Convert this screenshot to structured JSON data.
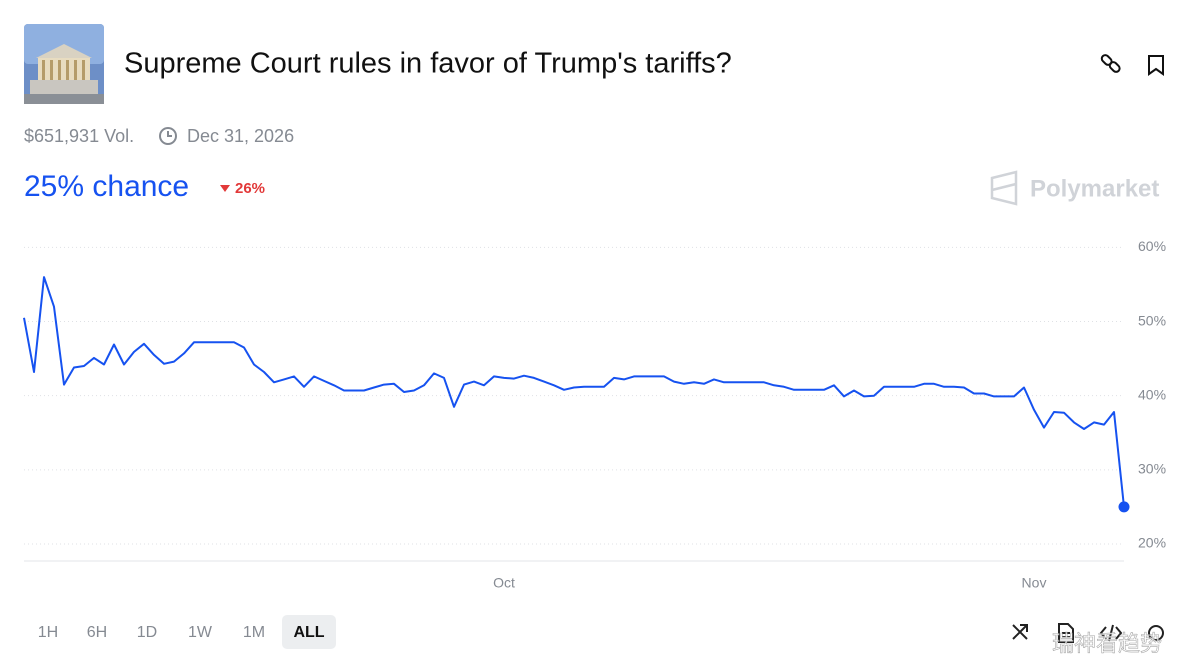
{
  "header": {
    "title": "Supreme Court rules in favor of Trump's tariffs?",
    "volume": "$651,931 Vol.",
    "end_date": "Dec 31, 2026",
    "chance": "25% chance",
    "change": "26%",
    "brand": "Polymarket"
  },
  "chart_data": {
    "type": "line",
    "categories": [
      null,
      null,
      null,
      null,
      null,
      null,
      null,
      null,
      null,
      null,
      null,
      null,
      null,
      null,
      null,
      null,
      null,
      null,
      null,
      null,
      null,
      null,
      null,
      null,
      null,
      null,
      null,
      null,
      null,
      null,
      null,
      null,
      null,
      null,
      null,
      null,
      null,
      null,
      null,
      null,
      null,
      null,
      null,
      null,
      null,
      null,
      null,
      null,
      "Oct",
      null,
      null,
      null,
      null,
      null,
      null,
      null,
      null,
      null,
      null,
      null,
      null,
      null,
      null,
      null,
      null,
      null,
      null,
      null,
      null,
      null,
      null,
      null,
      null,
      null,
      null,
      null,
      null,
      null,
      null,
      null,
      null,
      null,
      null,
      null,
      null,
      null,
      null,
      null,
      null,
      null,
      null,
      null,
      null,
      null,
      null,
      null,
      null,
      null,
      null,
      null,
      null,
      "Nov",
      null,
      null,
      null,
      null,
      null,
      null,
      null,
      null,
      null
    ],
    "series": [
      {
        "color": "#1652f0",
        "values": [
          50.5,
          43.2,
          56,
          52,
          41.5,
          43.8,
          44,
          45.1,
          44.2,
          46.9,
          44.2,
          45.9,
          47,
          45.5,
          44.3,
          44.6,
          45.7,
          47.2,
          47.2,
          47.2,
          47.2,
          47.2,
          46.5,
          44.2,
          43.2,
          41.8,
          42.2,
          42.6,
          41.2,
          42.6,
          42.0,
          41.4,
          40.7,
          40.7,
          40.7,
          41.1,
          41.5,
          41.6,
          40.5,
          40.7,
          41.4,
          43,
          42.4,
          38.5,
          41.5,
          41.9,
          41.4,
          42.6,
          42.4,
          42.3,
          42.7,
          42.4,
          41.9,
          41.4,
          40.8,
          41.1,
          41.2,
          41.2,
          41.2,
          42.4,
          42.2,
          42.6,
          42.6,
          42.6,
          42.6,
          41.9,
          41.6,
          41.8,
          41.6,
          42.2,
          41.8,
          41.8,
          41.8,
          41.8,
          41.8,
          41.4,
          41.2,
          40.8,
          40.8,
          40.8,
          40.8,
          41.4,
          39.9,
          40.7,
          39.9,
          40,
          41.2,
          41.2,
          41.2,
          41.2,
          41.6,
          41.6,
          41.2,
          41.2,
          41.1,
          40.3,
          40.3,
          39.9,
          39.9,
          39.9,
          41.1,
          38.1,
          35.7,
          37.8,
          37.7,
          36.4,
          35.5,
          36.4,
          36.1,
          37.8,
          25
        ]
      }
    ],
    "ylim": [
      17.7,
      61
    ],
    "yticks": [
      {
        "value": 20,
        "label": "20%"
      },
      {
        "value": 30,
        "label": "30%"
      },
      {
        "value": 40,
        "label": "40%"
      },
      {
        "value": 50,
        "label": "50%"
      },
      {
        "value": 60,
        "label": "60%"
      }
    ],
    "grid": true
  },
  "controls": {
    "ranges": [
      "1H",
      "6H",
      "1D",
      "1W",
      "1M",
      "ALL"
    ],
    "active": 5
  },
  "watermark": "瑞神看趋势"
}
